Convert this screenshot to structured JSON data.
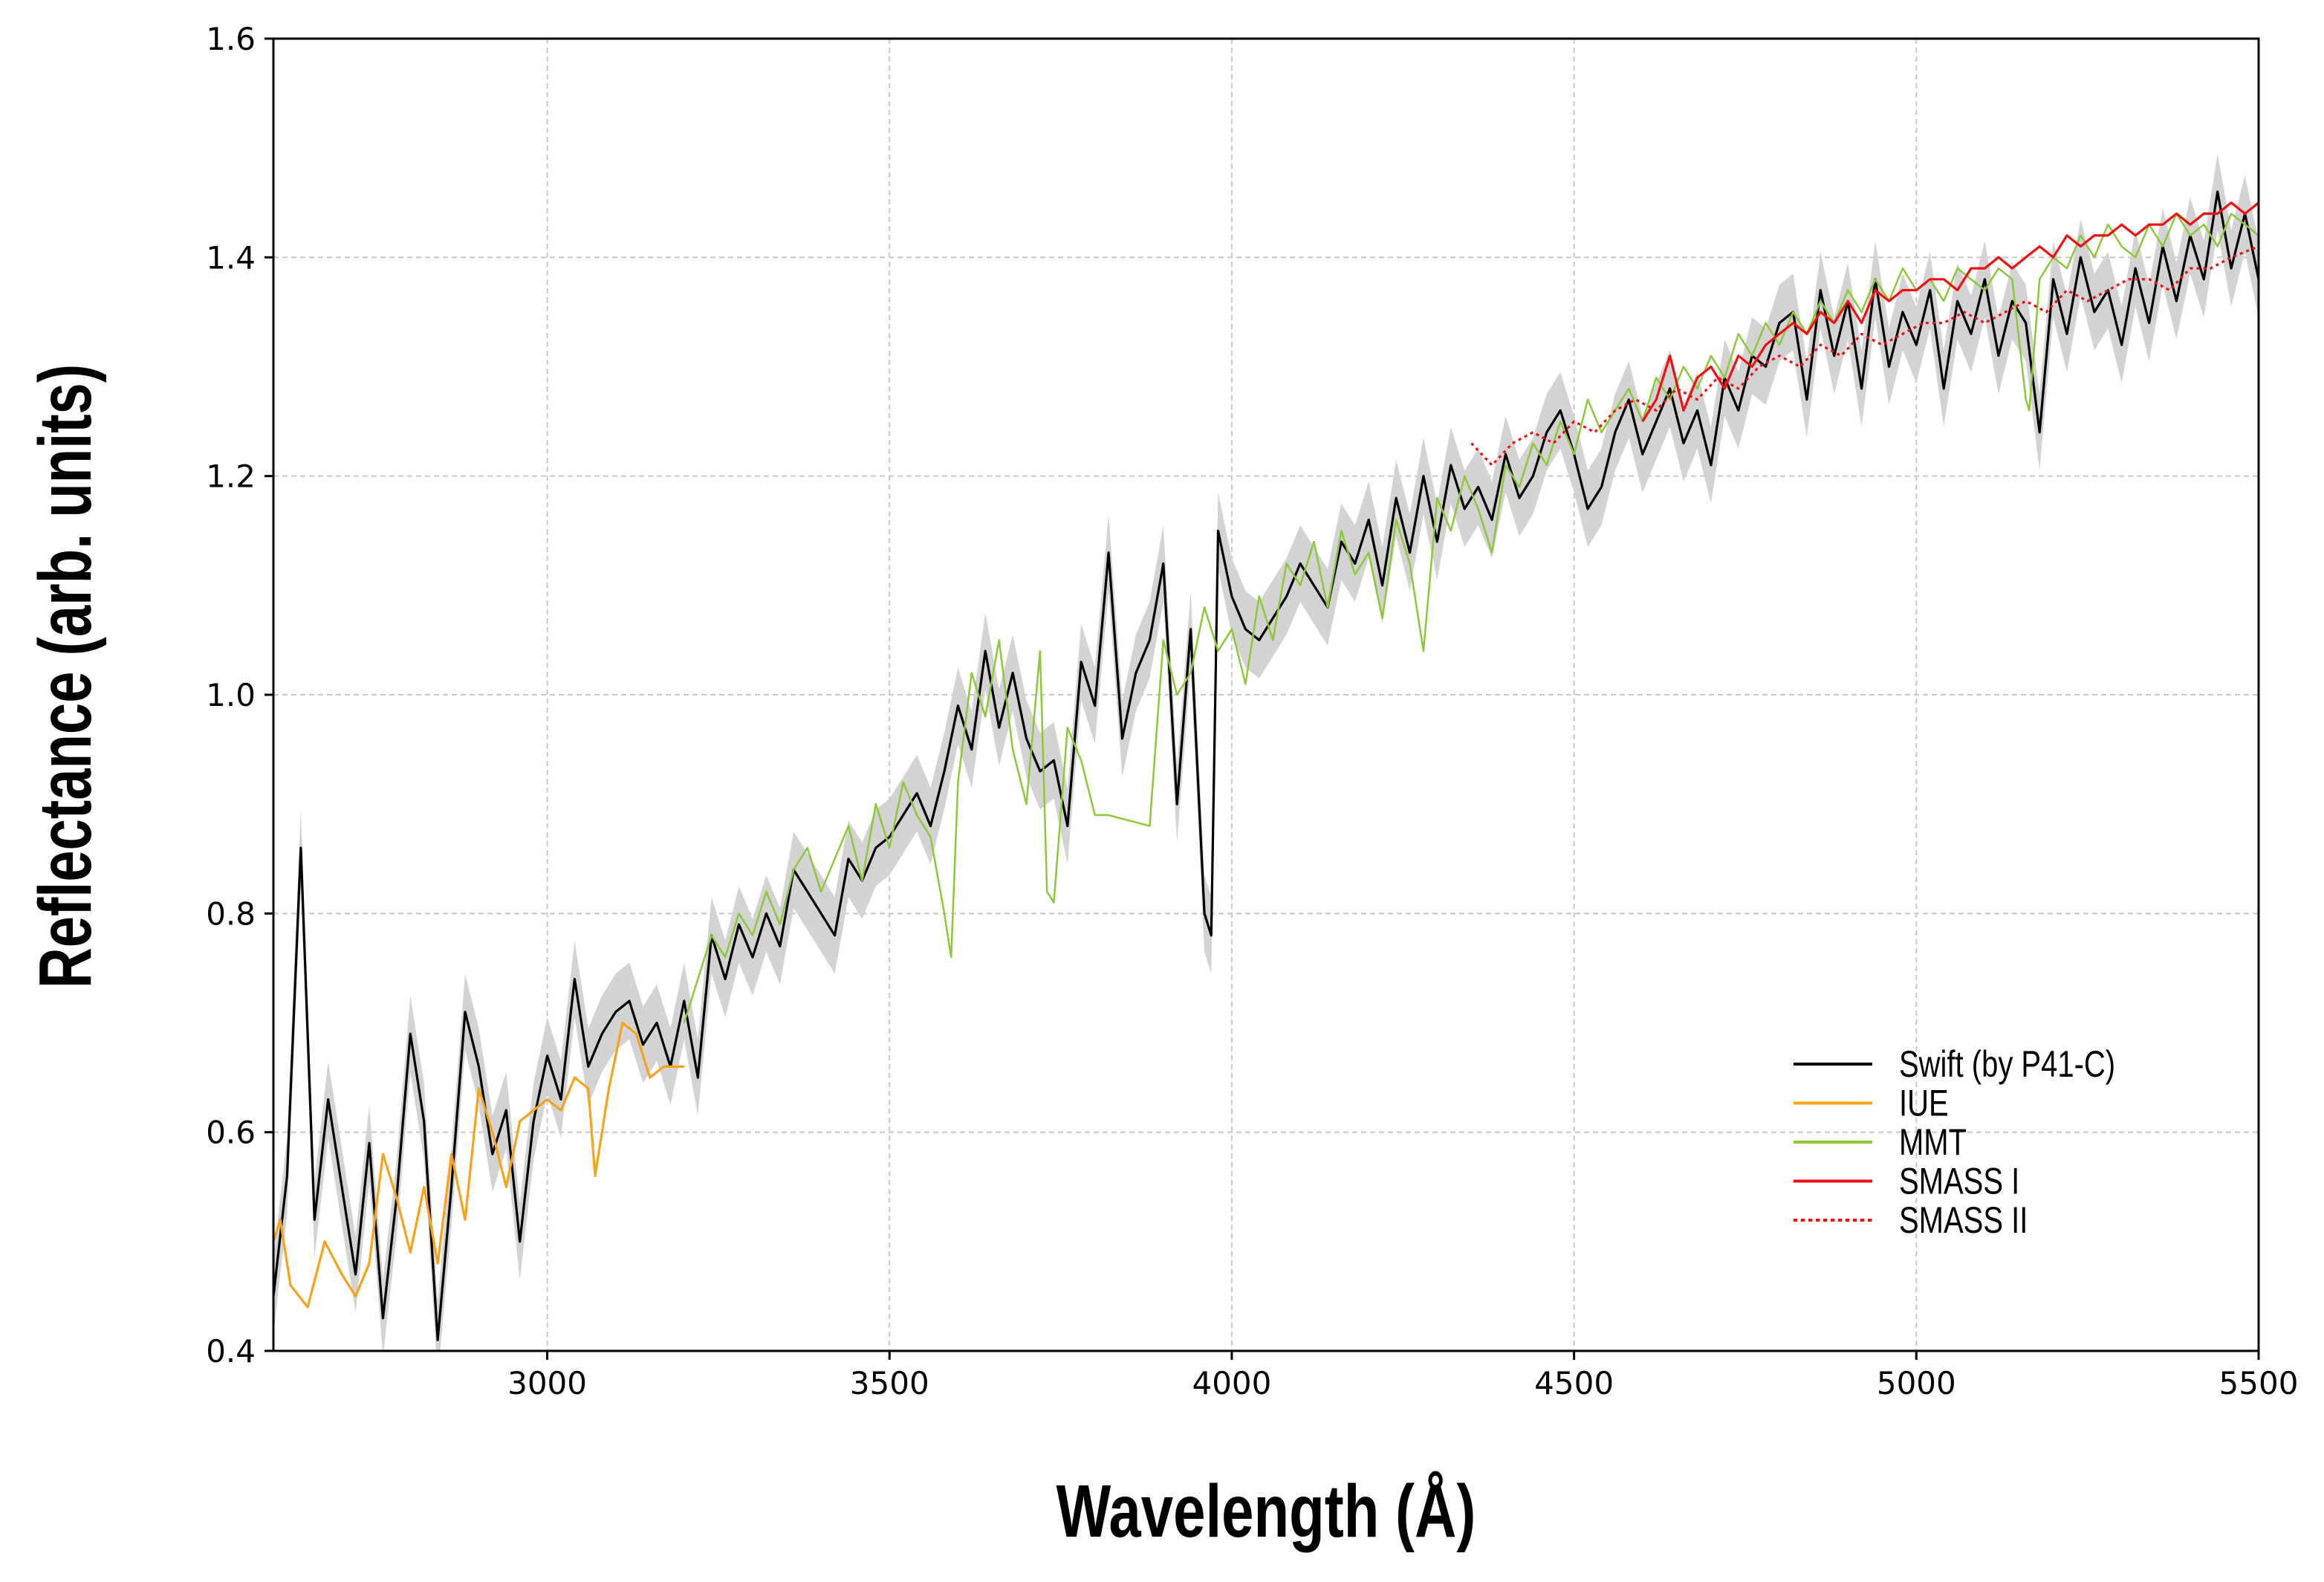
{
  "chart_data": {
    "type": "line",
    "title": "",
    "xlabel": "Wavelength (Å)",
    "ylabel": "Reflectance (arb. units)",
    "xlim": [
      2600,
      5500
    ],
    "ylim": [
      0.4,
      1.6
    ],
    "grid": true,
    "legend_position": "lower-right",
    "x_ticks": [
      3000,
      3500,
      4000,
      4500,
      5000,
      5500
    ],
    "x_tick_labels": [
      "3000",
      "3500",
      "4000",
      "4500",
      "5000",
      "5500"
    ],
    "y_ticks": [
      0.4,
      0.6,
      0.8,
      1.0,
      1.2,
      1.4,
      1.6
    ],
    "y_tick_labels": [
      "0.4",
      "0.6",
      "0.8",
      "1.0",
      "1.2",
      "1.4",
      "1.6"
    ],
    "series": [
      {
        "name": "Swift (by P41-C)",
        "color": "#000000",
        "style": "solid",
        "band": true,
        "band_color": "#d3d3d3",
        "band_halfwidth": 0.035,
        "x": [
          2600,
          2620,
          2640,
          2660,
          2680,
          2700,
          2720,
          2740,
          2760,
          2780,
          2800,
          2820,
          2840,
          2860,
          2880,
          2900,
          2920,
          2940,
          2960,
          2980,
          3000,
          3020,
          3040,
          3060,
          3080,
          3100,
          3120,
          3140,
          3160,
          3180,
          3200,
          3220,
          3240,
          3260,
          3280,
          3300,
          3320,
          3340,
          3360,
          3380,
          3400,
          3420,
          3440,
          3460,
          3480,
          3500,
          3520,
          3540,
          3560,
          3580,
          3600,
          3620,
          3640,
          3660,
          3680,
          3700,
          3720,
          3740,
          3760,
          3780,
          3800,
          3820,
          3840,
          3860,
          3880,
          3900,
          3920,
          3940,
          3960,
          3970,
          3980,
          4000,
          4020,
          4040,
          4060,
          4080,
          4100,
          4120,
          4140,
          4160,
          4180,
          4200,
          4220,
          4240,
          4260,
          4280,
          4300,
          4320,
          4340,
          4360,
          4380,
          4400,
          4420,
          4440,
          4460,
          4480,
          4500,
          4520,
          4540,
          4560,
          4580,
          4600,
          4620,
          4640,
          4660,
          4680,
          4700,
          4720,
          4740,
          4760,
          4780,
          4800,
          4820,
          4840,
          4860,
          4880,
          4900,
          4920,
          4940,
          4960,
          4980,
          5000,
          5020,
          5040,
          5060,
          5080,
          5100,
          5120,
          5140,
          5160,
          5180,
          5200,
          5220,
          5240,
          5260,
          5280,
          5300,
          5320,
          5340,
          5360,
          5380,
          5400,
          5420,
          5440,
          5460,
          5480,
          5500
        ],
        "y": [
          0.45,
          0.56,
          0.86,
          0.52,
          0.63,
          0.55,
          0.47,
          0.59,
          0.43,
          0.54,
          0.69,
          0.61,
          0.41,
          0.55,
          0.71,
          0.66,
          0.58,
          0.62,
          0.5,
          0.61,
          0.67,
          0.63,
          0.74,
          0.66,
          0.69,
          0.71,
          0.72,
          0.68,
          0.7,
          0.66,
          0.72,
          0.65,
          0.78,
          0.74,
          0.79,
          0.76,
          0.8,
          0.77,
          0.84,
          0.82,
          0.8,
          0.78,
          0.85,
          0.83,
          0.86,
          0.87,
          0.89,
          0.91,
          0.88,
          0.93,
          0.99,
          0.95,
          1.04,
          0.97,
          1.02,
          0.96,
          0.93,
          0.94,
          0.88,
          1.03,
          0.99,
          1.13,
          0.96,
          1.02,
          1.05,
          1.12,
          0.9,
          1.06,
          0.8,
          0.78,
          1.15,
          1.09,
          1.06,
          1.05,
          1.07,
          1.09,
          1.12,
          1.1,
          1.08,
          1.14,
          1.12,
          1.16,
          1.1,
          1.18,
          1.13,
          1.2,
          1.14,
          1.21,
          1.17,
          1.19,
          1.16,
          1.22,
          1.18,
          1.2,
          1.24,
          1.26,
          1.22,
          1.17,
          1.19,
          1.24,
          1.27,
          1.22,
          1.25,
          1.28,
          1.23,
          1.26,
          1.21,
          1.29,
          1.26,
          1.31,
          1.3,
          1.34,
          1.35,
          1.27,
          1.37,
          1.31,
          1.36,
          1.28,
          1.38,
          1.3,
          1.35,
          1.32,
          1.37,
          1.28,
          1.36,
          1.33,
          1.38,
          1.31,
          1.36,
          1.34,
          1.24,
          1.38,
          1.33,
          1.4,
          1.35,
          1.37,
          1.32,
          1.39,
          1.34,
          1.41,
          1.36,
          1.42,
          1.38,
          1.46,
          1.39,
          1.44,
          1.38
        ]
      },
      {
        "name": "IUE",
        "color": "#f5a31a",
        "style": "solid",
        "band": false,
        "x": [
          2600,
          2610,
          2625,
          2650,
          2675,
          2700,
          2720,
          2740,
          2760,
          2780,
          2800,
          2820,
          2840,
          2860,
          2880,
          2900,
          2920,
          2940,
          2960,
          2980,
          3000,
          3020,
          3040,
          3060,
          3070,
          3090,
          3110,
          3130,
          3150,
          3170,
          3200
        ],
        "y": [
          0.5,
          0.52,
          0.46,
          0.44,
          0.5,
          0.47,
          0.45,
          0.48,
          0.58,
          0.54,
          0.49,
          0.55,
          0.48,
          0.58,
          0.52,
          0.64,
          0.6,
          0.55,
          0.61,
          0.62,
          0.63,
          0.62,
          0.65,
          0.64,
          0.56,
          0.64,
          0.7,
          0.69,
          0.65,
          0.66,
          0.66
        ]
      },
      {
        "name": "MMT",
        "color": "#8cc83c",
        "style": "solid",
        "band": false,
        "x": [
          3200,
          3220,
          3240,
          3260,
          3280,
          3300,
          3320,
          3340,
          3360,
          3380,
          3400,
          3420,
          3440,
          3460,
          3480,
          3500,
          3520,
          3540,
          3560,
          3580,
          3590,
          3600,
          3620,
          3640,
          3660,
          3680,
          3700,
          3720,
          3730,
          3740,
          3760,
          3780,
          3800,
          3820,
          3880,
          3900,
          3920,
          3940,
          3960,
          3980,
          4000,
          4020,
          4040,
          4060,
          4080,
          4100,
          4120,
          4140,
          4160,
          4180,
          4200,
          4220,
          4240,
          4260,
          4280,
          4300,
          4320,
          4340,
          4360,
          4380,
          4400,
          4420,
          4440,
          4460,
          4480,
          4500,
          4520,
          4540,
          4560,
          4580,
          4600,
          4620,
          4640,
          4660,
          4680,
          4700,
          4720,
          4740,
          4760,
          4780,
          4800,
          4820,
          4840,
          4860,
          4880,
          4900,
          4920,
          4940,
          4960,
          4980,
          5000,
          5020,
          5040,
          5060,
          5080,
          5100,
          5120,
          5140,
          5160,
          5165,
          5180,
          5200,
          5220,
          5240,
          5260,
          5280,
          5300,
          5320,
          5340,
          5360,
          5380,
          5400,
          5420,
          5440,
          5460,
          5480,
          5500
        ],
        "y": [
          0.7,
          0.74,
          0.78,
          0.76,
          0.8,
          0.78,
          0.82,
          0.79,
          0.84,
          0.86,
          0.82,
          0.85,
          0.88,
          0.83,
          0.9,
          0.86,
          0.92,
          0.89,
          0.87,
          0.8,
          0.76,
          0.92,
          1.02,
          0.98,
          1.05,
          0.95,
          0.9,
          1.04,
          0.82,
          0.81,
          0.97,
          0.94,
          0.89,
          0.89,
          0.88,
          1.05,
          1.0,
          1.02,
          1.08,
          1.04,
          1.06,
          1.01,
          1.09,
          1.05,
          1.12,
          1.1,
          1.14,
          1.08,
          1.15,
          1.11,
          1.13,
          1.07,
          1.16,
          1.12,
          1.04,
          1.18,
          1.15,
          1.2,
          1.17,
          1.13,
          1.21,
          1.19,
          1.23,
          1.21,
          1.25,
          1.22,
          1.27,
          1.24,
          1.26,
          1.28,
          1.25,
          1.29,
          1.27,
          1.3,
          1.28,
          1.31,
          1.29,
          1.33,
          1.31,
          1.34,
          1.32,
          1.35,
          1.33,
          1.36,
          1.34,
          1.37,
          1.35,
          1.38,
          1.36,
          1.39,
          1.37,
          1.38,
          1.36,
          1.39,
          1.38,
          1.37,
          1.39,
          1.38,
          1.27,
          1.26,
          1.38,
          1.4,
          1.39,
          1.42,
          1.4,
          1.43,
          1.41,
          1.4,
          1.43,
          1.41,
          1.44,
          1.42,
          1.43,
          1.41,
          1.44,
          1.43,
          1.42
        ]
      },
      {
        "name": "SMASS I",
        "color": "#ee1111",
        "style": "solid",
        "band": false,
        "x": [
          4600,
          4620,
          4640,
          4660,
          4680,
          4700,
          4720,
          4740,
          4760,
          4780,
          4800,
          4820,
          4840,
          4860,
          4880,
          4900,
          4920,
          4940,
          4960,
          4980,
          5000,
          5020,
          5040,
          5060,
          5080,
          5100,
          5120,
          5140,
          5160,
          5180,
          5200,
          5220,
          5240,
          5260,
          5280,
          5300,
          5320,
          5340,
          5360,
          5380,
          5400,
          5420,
          5440,
          5460,
          5480,
          5500
        ],
        "y": [
          1.25,
          1.27,
          1.31,
          1.26,
          1.29,
          1.3,
          1.28,
          1.31,
          1.3,
          1.32,
          1.33,
          1.34,
          1.33,
          1.35,
          1.34,
          1.36,
          1.34,
          1.37,
          1.36,
          1.37,
          1.37,
          1.38,
          1.38,
          1.37,
          1.39,
          1.39,
          1.4,
          1.39,
          1.4,
          1.41,
          1.4,
          1.42,
          1.41,
          1.42,
          1.42,
          1.43,
          1.42,
          1.43,
          1.43,
          1.44,
          1.43,
          1.44,
          1.44,
          1.45,
          1.44,
          1.45
        ]
      },
      {
        "name": "SMASS II",
        "color": "#ee1111",
        "style": "dotted",
        "band": false,
        "x": [
          4350,
          4380,
          4410,
          4440,
          4470,
          4500,
          4530,
          4560,
          4590,
          4620,
          4650,
          4680,
          4710,
          4740,
          4770,
          4800,
          4830,
          4860,
          4890,
          4920,
          4950,
          4980,
          5010,
          5040,
          5070,
          5100,
          5130,
          5160,
          5190,
          5220,
          5250,
          5280,
          5310,
          5340,
          5370,
          5400,
          5430,
          5460,
          5500
        ],
        "y": [
          1.23,
          1.21,
          1.23,
          1.24,
          1.23,
          1.25,
          1.24,
          1.26,
          1.27,
          1.26,
          1.28,
          1.27,
          1.29,
          1.28,
          1.3,
          1.31,
          1.3,
          1.32,
          1.31,
          1.33,
          1.32,
          1.33,
          1.34,
          1.34,
          1.35,
          1.34,
          1.35,
          1.36,
          1.35,
          1.37,
          1.36,
          1.37,
          1.38,
          1.38,
          1.37,
          1.39,
          1.39,
          1.4,
          1.41
        ]
      }
    ]
  }
}
